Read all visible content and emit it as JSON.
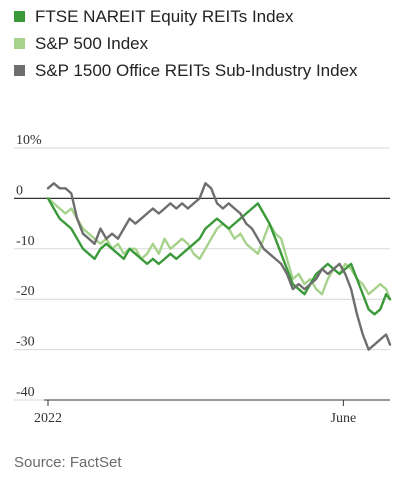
{
  "legend": {
    "items": [
      {
        "label": "FTSE NAREIT Equity REITs Index",
        "color": "#3a9a3a"
      },
      {
        "label": "S&P 500 Index",
        "color": "#a6d28c"
      },
      {
        "label": "S&P 1500 Office REITs Sub-Industry Index",
        "color": "#6e6e6e"
      }
    ]
  },
  "source": "Source: FactSet",
  "chart_data": {
    "type": "line",
    "title": "",
    "xlabel": "",
    "ylabel": "",
    "ylim": [
      -40,
      10
    ],
    "y_ticks": [
      {
        "value": 10,
        "label": "10%"
      },
      {
        "value": 0,
        "label": "0"
      },
      {
        "value": -10,
        "label": "-10"
      },
      {
        "value": -20,
        "label": "-20"
      },
      {
        "value": -30,
        "label": "-30"
      },
      {
        "value": -40,
        "label": "-40"
      }
    ],
    "x_ticks": [
      {
        "value": 0,
        "label": "2022"
      },
      {
        "value": 152,
        "label": "June"
      }
    ],
    "xlim": [
      0,
      176
    ],
    "grid": "horizontal",
    "legend_position": "top",
    "series": [
      {
        "name": "S&P 500 Index",
        "color": "#a6d28c",
        "x": [
          0,
          3,
          6,
          9,
          12,
          15,
          18,
          21,
          24,
          27,
          30,
          33,
          36,
          39,
          42,
          45,
          48,
          51,
          54,
          57,
          60,
          63,
          66,
          69,
          72,
          75,
          78,
          81,
          84,
          87,
          90,
          93,
          96,
          99,
          102,
          105,
          108,
          111,
          114,
          117,
          120,
          123,
          126,
          129,
          132,
          135,
          138,
          141,
          144,
          147,
          150,
          153,
          156,
          159,
          162,
          165,
          168,
          171,
          174,
          176
        ],
        "values": [
          0,
          -1,
          -2,
          -3,
          -2,
          -4,
          -6,
          -7,
          -8,
          -9,
          -8,
          -10,
          -9,
          -11,
          -10,
          -10,
          -12,
          -11,
          -9,
          -11,
          -8,
          -10,
          -9,
          -8,
          -9,
          -11,
          -12,
          -10,
          -8,
          -6,
          -5,
          -6,
          -8,
          -7,
          -9,
          -10,
          -11,
          -8,
          -5,
          -7,
          -8,
          -12,
          -16,
          -15,
          -17,
          -16,
          -18,
          -19,
          -16,
          -14,
          -15,
          -13,
          -14,
          -16,
          -17,
          -19,
          -18,
          -17,
          -18,
          -20
        ]
      },
      {
        "name": "FTSE NAREIT Equity REITs Index",
        "color": "#3a9a3a",
        "x": [
          0,
          3,
          6,
          9,
          12,
          15,
          18,
          21,
          24,
          27,
          30,
          33,
          36,
          39,
          42,
          45,
          48,
          51,
          54,
          57,
          60,
          63,
          66,
          69,
          72,
          75,
          78,
          81,
          84,
          87,
          90,
          93,
          96,
          99,
          102,
          105,
          108,
          111,
          114,
          117,
          120,
          123,
          126,
          129,
          132,
          135,
          138,
          141,
          144,
          147,
          150,
          153,
          156,
          159,
          162,
          165,
          168,
          171,
          174,
          176
        ],
        "values": [
          0,
          -2,
          -4,
          -5,
          -6,
          -8,
          -10,
          -11,
          -12,
          -10,
          -9,
          -10,
          -11,
          -12,
          -10,
          -11,
          -12,
          -13,
          -12,
          -13,
          -12,
          -11,
          -12,
          -11,
          -10,
          -9,
          -8,
          -6,
          -5,
          -4,
          -5,
          -6,
          -5,
          -4,
          -3,
          -2,
          -1,
          -3,
          -5,
          -8,
          -11,
          -14,
          -17,
          -18,
          -19,
          -17,
          -15,
          -14,
          -13,
          -14,
          -15,
          -14,
          -13,
          -16,
          -19,
          -22,
          -23,
          -22,
          -19,
          -20
        ]
      },
      {
        "name": "S&P 1500 Office REITs Sub-Industry Index",
        "color": "#6e6e6e",
        "x": [
          0,
          3,
          6,
          9,
          12,
          15,
          18,
          21,
          24,
          27,
          30,
          33,
          36,
          39,
          42,
          45,
          48,
          51,
          54,
          57,
          60,
          63,
          66,
          69,
          72,
          75,
          78,
          81,
          84,
          87,
          90,
          93,
          96,
          99,
          102,
          105,
          108,
          111,
          114,
          117,
          120,
          123,
          126,
          129,
          132,
          135,
          138,
          141,
          144,
          147,
          150,
          153,
          156,
          159,
          162,
          165,
          168,
          171,
          174,
          176
        ],
        "values": [
          2,
          3,
          2,
          2,
          1,
          -4,
          -7,
          -8,
          -9,
          -6,
          -8,
          -7,
          -8,
          -6,
          -4,
          -5,
          -4,
          -3,
          -2,
          -3,
          -2,
          -1,
          -2,
          -1,
          -2,
          -1,
          0,
          3,
          2,
          -1,
          -2,
          -1,
          -2,
          -3,
          -5,
          -6,
          -8,
          -10,
          -11,
          -12,
          -13,
          -15,
          -18,
          -17,
          -18,
          -17,
          -16,
          -14,
          -15,
          -14,
          -13,
          -15,
          -18,
          -23,
          -27,
          -30,
          -29,
          -28,
          -27,
          -29
        ]
      }
    ]
  }
}
